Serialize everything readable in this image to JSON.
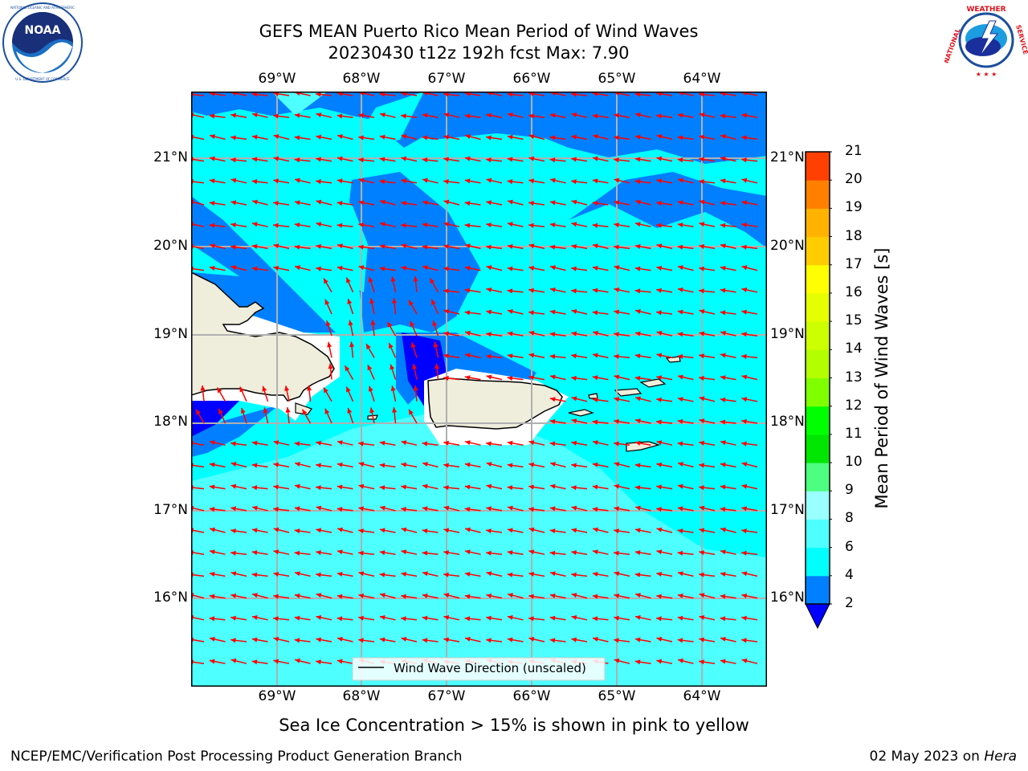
{
  "header": {
    "title_line1": "GEFS MEAN Puerto Rico Mean Period of Wind Waves",
    "title_line2": "20230430 t12z 192h fcst   Max: 7.90"
  },
  "logos": {
    "noaa_text": "NOAA",
    "noaa_ring_text": "NATIONAL OCEANIC AND ATMOSPHERIC ADMINISTRATION · U.S. DEPARTMENT OF COMMERCE",
    "nws_ring_text": "NATIONAL WEATHER SERVICE"
  },
  "map": {
    "lon_labels": [
      "69°W",
      "68°W",
      "67°W",
      "66°W",
      "65°W",
      "64°W"
    ],
    "lat_labels": [
      "21°N",
      "20°N",
      "19°N",
      "18°N",
      "17°N",
      "16°N"
    ],
    "legend_label": "Wind Wave Direction (unscaled)",
    "colors": {
      "land": "#efeddc",
      "lightest_cyan": "#4dffff",
      "cyan": "#00ffff",
      "blue": "#0080ff",
      "deep_blue": "#0000ff",
      "arrow": "#ff0000"
    }
  },
  "colorbar": {
    "label": "Mean Period of Wind Waves [s]",
    "ticks": [
      "2",
      "4",
      "6",
      "8",
      "9",
      "10",
      "11",
      "12",
      "13",
      "14",
      "15",
      "16",
      "17",
      "18",
      "19",
      "20",
      "21"
    ],
    "colors": [
      "#0080ff",
      "#00ffff",
      "#4dffff",
      "#99ffff",
      "#4dff80",
      "#00e600",
      "#00ff00",
      "#80ff00",
      "#b3ff00",
      "#ccff00",
      "#e6ff00",
      "#ffff00",
      "#ffcc00",
      "#ffb300",
      "#ff8000",
      "#ff4000",
      "#ff0000"
    ],
    "extend_color": "#0000ff"
  },
  "footer": {
    "sea_ice_note": "Sea Ice Concentration > 15% is shown in pink to yellow",
    "branch": "NCEP/EMC/Verification Post Processing Product Generation Branch",
    "date": "02 May 2023 on ",
    "host": "Hera"
  }
}
